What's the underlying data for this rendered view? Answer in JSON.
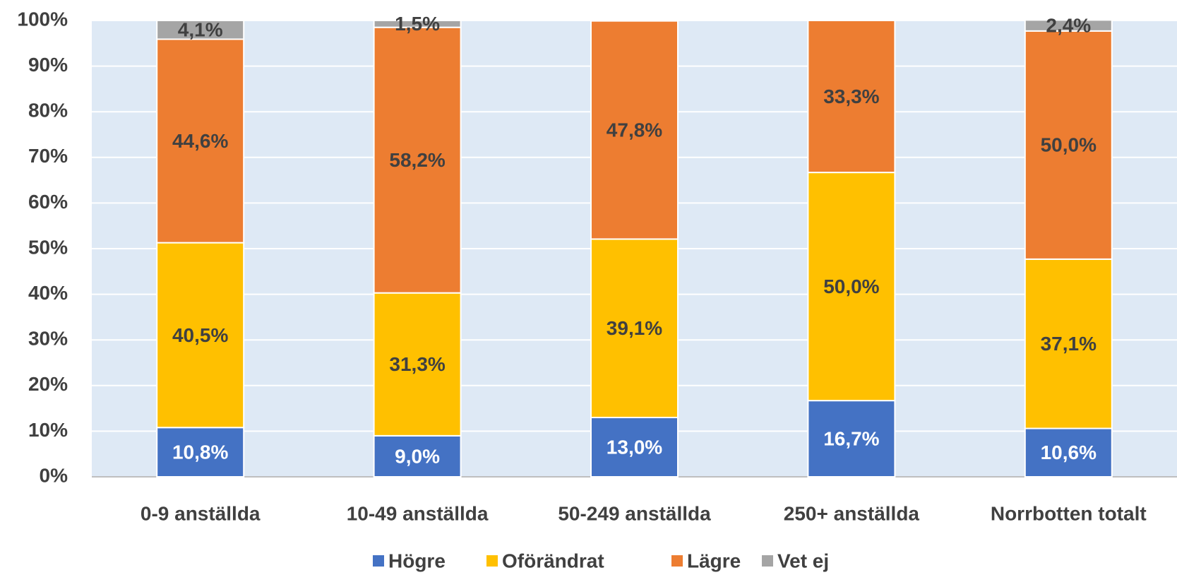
{
  "chart_data": {
    "type": "stacked-bar",
    "categories": [
      "0-9 anställda",
      "10-49 anställda",
      "50-249 anställda",
      "250+ anställda",
      "Norrbotten totalt"
    ],
    "series": [
      {
        "name": "Högre",
        "color": "#4472c4",
        "label_color": "#ffffff",
        "values": [
          10.8,
          9.0,
          13.0,
          16.7,
          10.6
        ],
        "value_labels": [
          "10,8%",
          "9,0%",
          "13,0%",
          "16,7%",
          "10,6%"
        ]
      },
      {
        "name": "Oförändrat",
        "color": "#ffc000",
        "label_color": "#404040",
        "values": [
          40.5,
          31.3,
          39.1,
          50.0,
          37.1
        ],
        "value_labels": [
          "40,5%",
          "31,3%",
          "39,1%",
          "50,0%",
          "37,1%"
        ]
      },
      {
        "name": "Lägre",
        "color": "#ed7d31",
        "label_color": "#404040",
        "values": [
          44.6,
          58.2,
          47.8,
          33.3,
          50.0
        ],
        "value_labels": [
          "44,6%",
          "58,2%",
          "47,8%",
          "33,3%",
          "50,0%"
        ]
      },
      {
        "name": "Vet ej",
        "color": "#a5a5a5",
        "label_color": "#404040",
        "values": [
          4.1,
          1.5,
          null,
          null,
          2.4
        ],
        "value_labels": [
          "4,1%",
          "1,5%",
          null,
          null,
          "2,4%"
        ]
      }
    ],
    "ylim": [
      0,
      100
    ],
    "yticks": [
      {
        "value": 0,
        "label": "0%"
      },
      {
        "value": 10,
        "label": "10%"
      },
      {
        "value": 20,
        "label": "20%"
      },
      {
        "value": 30,
        "label": "30%"
      },
      {
        "value": 40,
        "label": "40%"
      },
      {
        "value": 50,
        "label": "50%"
      },
      {
        "value": 60,
        "label": "60%"
      },
      {
        "value": 70,
        "label": "70%"
      },
      {
        "value": 80,
        "label": "80%"
      },
      {
        "value": 90,
        "label": "90%"
      },
      {
        "value": 100,
        "label": "100%"
      }
    ],
    "grid": true,
    "background": "#dee9f5",
    "legend": "bottom"
  }
}
